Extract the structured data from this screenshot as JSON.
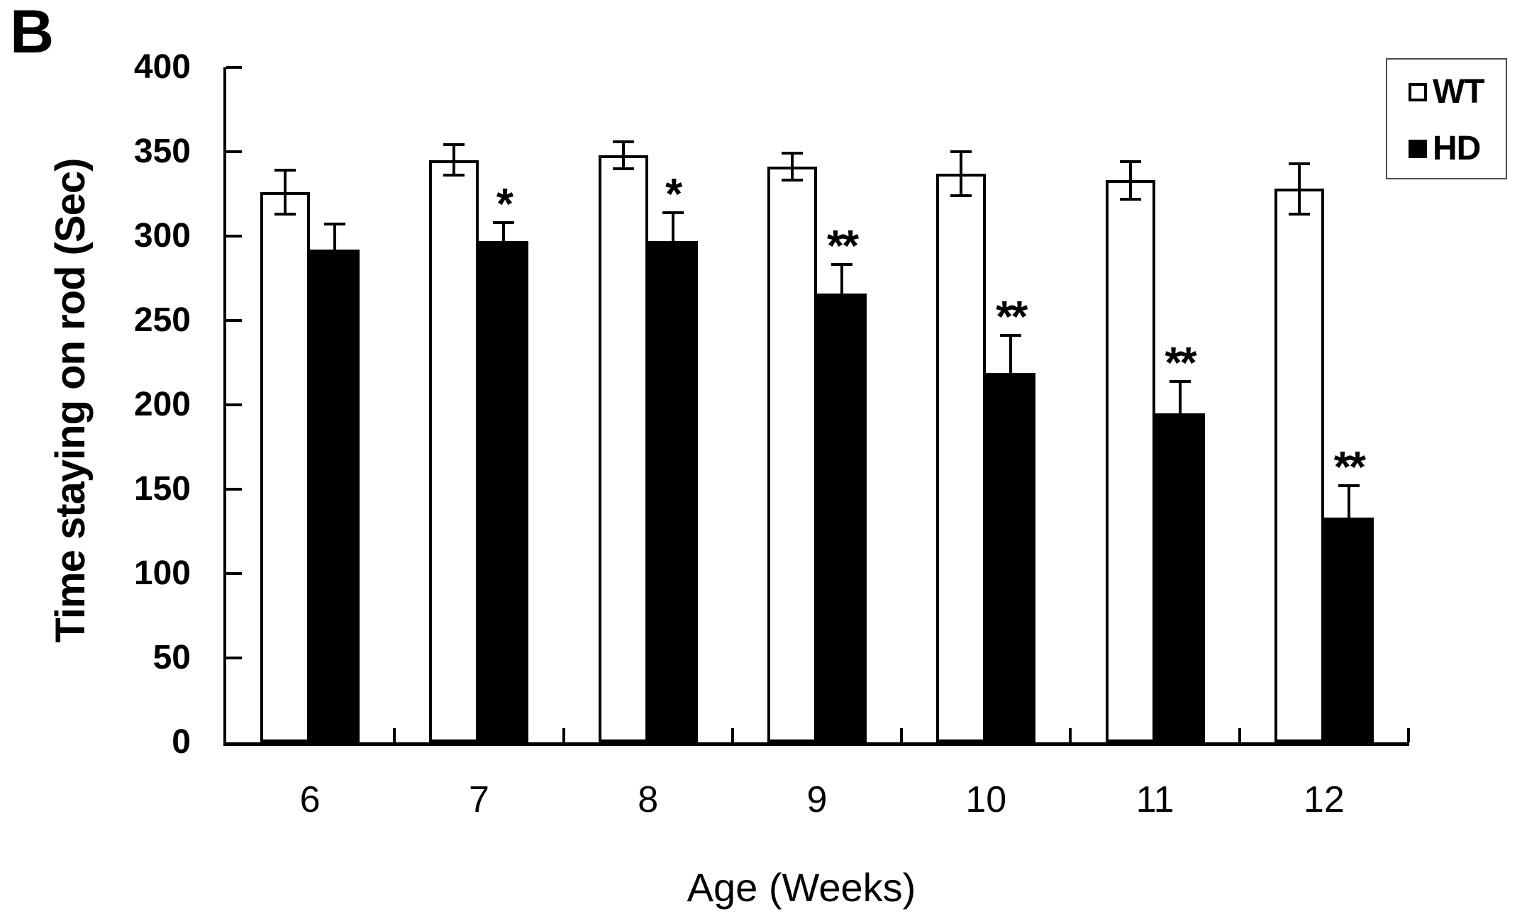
{
  "panel_label": "B",
  "colors": {
    "wt_fill": "#ffffff",
    "hd_fill": "#000000",
    "axis": "#000000",
    "background": "#ffffff"
  },
  "legend": {
    "position": "top-right",
    "items": [
      {
        "label": "WT",
        "swatch": "white-square"
      },
      {
        "label": "HD",
        "swatch": "black-square"
      }
    ]
  },
  "chart_data": {
    "type": "bar",
    "title": "",
    "xlabel": "Age (Weeks)",
    "ylabel": "Time staying on rod (Sec)",
    "categories": [
      "6",
      "7",
      "8",
      "9",
      "10",
      "11",
      "12"
    ],
    "ylim": [
      0,
      400
    ],
    "y_ticks": [
      0,
      50,
      100,
      150,
      200,
      250,
      300,
      350,
      400
    ],
    "grid": false,
    "legend_position": "top-right",
    "series": [
      {
        "name": "WT",
        "fill": "#ffffff",
        "values": [
          326,
          345,
          348,
          341,
          337,
          333,
          328
        ],
        "errors": [
          13,
          9,
          8,
          8,
          13,
          11,
          15
        ],
        "significance": [
          "",
          "",
          "",
          "",
          "",
          "",
          ""
        ]
      },
      {
        "name": "HD",
        "fill": "#000000",
        "values": [
          292,
          297,
          297,
          266,
          219,
          195,
          133
        ],
        "errors": [
          15,
          11,
          17,
          17,
          22,
          19,
          19
        ],
        "significance": [
          "",
          "*",
          "*",
          "**",
          "**",
          "**",
          "**"
        ]
      }
    ]
  }
}
